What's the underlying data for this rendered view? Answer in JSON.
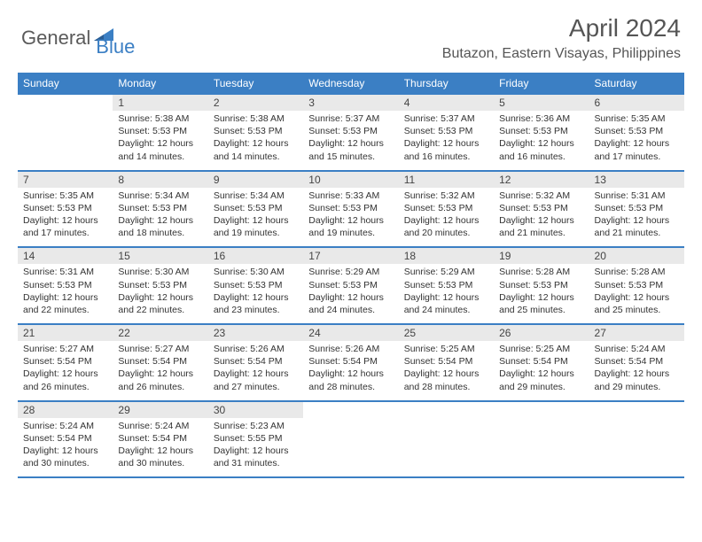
{
  "logo": {
    "text1": "General",
    "text2": "Blue"
  },
  "title": "April 2024",
  "location": "Butazon, Eastern Visayas, Philippines",
  "colors": {
    "accent": "#3b7fc4",
    "header_text": "#ffffff",
    "daynum_bg": "#e9e9e9",
    "body_text": "#333333",
    "title_text": "#555555",
    "background": "#ffffff"
  },
  "typography": {
    "month_title_fontsize": 28,
    "location_fontsize": 16,
    "weekday_fontsize": 12,
    "daynum_fontsize": 12,
    "body_fontsize": 10.5
  },
  "weekdays": [
    "Sunday",
    "Monday",
    "Tuesday",
    "Wednesday",
    "Thursday",
    "Friday",
    "Saturday"
  ],
  "first_weekday_index": 1,
  "days_in_month": 30,
  "days": [
    {
      "n": 1,
      "sunrise": "5:38 AM",
      "sunset": "5:53 PM",
      "dl_h": 12,
      "dl_m": 14
    },
    {
      "n": 2,
      "sunrise": "5:38 AM",
      "sunset": "5:53 PM",
      "dl_h": 12,
      "dl_m": 14
    },
    {
      "n": 3,
      "sunrise": "5:37 AM",
      "sunset": "5:53 PM",
      "dl_h": 12,
      "dl_m": 15
    },
    {
      "n": 4,
      "sunrise": "5:37 AM",
      "sunset": "5:53 PM",
      "dl_h": 12,
      "dl_m": 16
    },
    {
      "n": 5,
      "sunrise": "5:36 AM",
      "sunset": "5:53 PM",
      "dl_h": 12,
      "dl_m": 16
    },
    {
      "n": 6,
      "sunrise": "5:35 AM",
      "sunset": "5:53 PM",
      "dl_h": 12,
      "dl_m": 17
    },
    {
      "n": 7,
      "sunrise": "5:35 AM",
      "sunset": "5:53 PM",
      "dl_h": 12,
      "dl_m": 17
    },
    {
      "n": 8,
      "sunrise": "5:34 AM",
      "sunset": "5:53 PM",
      "dl_h": 12,
      "dl_m": 18
    },
    {
      "n": 9,
      "sunrise": "5:34 AM",
      "sunset": "5:53 PM",
      "dl_h": 12,
      "dl_m": 19
    },
    {
      "n": 10,
      "sunrise": "5:33 AM",
      "sunset": "5:53 PM",
      "dl_h": 12,
      "dl_m": 19
    },
    {
      "n": 11,
      "sunrise": "5:32 AM",
      "sunset": "5:53 PM",
      "dl_h": 12,
      "dl_m": 20
    },
    {
      "n": 12,
      "sunrise": "5:32 AM",
      "sunset": "5:53 PM",
      "dl_h": 12,
      "dl_m": 21
    },
    {
      "n": 13,
      "sunrise": "5:31 AM",
      "sunset": "5:53 PM",
      "dl_h": 12,
      "dl_m": 21
    },
    {
      "n": 14,
      "sunrise": "5:31 AM",
      "sunset": "5:53 PM",
      "dl_h": 12,
      "dl_m": 22
    },
    {
      "n": 15,
      "sunrise": "5:30 AM",
      "sunset": "5:53 PM",
      "dl_h": 12,
      "dl_m": 22
    },
    {
      "n": 16,
      "sunrise": "5:30 AM",
      "sunset": "5:53 PM",
      "dl_h": 12,
      "dl_m": 23
    },
    {
      "n": 17,
      "sunrise": "5:29 AM",
      "sunset": "5:53 PM",
      "dl_h": 12,
      "dl_m": 24
    },
    {
      "n": 18,
      "sunrise": "5:29 AM",
      "sunset": "5:53 PM",
      "dl_h": 12,
      "dl_m": 24
    },
    {
      "n": 19,
      "sunrise": "5:28 AM",
      "sunset": "5:53 PM",
      "dl_h": 12,
      "dl_m": 25
    },
    {
      "n": 20,
      "sunrise": "5:28 AM",
      "sunset": "5:53 PM",
      "dl_h": 12,
      "dl_m": 25
    },
    {
      "n": 21,
      "sunrise": "5:27 AM",
      "sunset": "5:54 PM",
      "dl_h": 12,
      "dl_m": 26
    },
    {
      "n": 22,
      "sunrise": "5:27 AM",
      "sunset": "5:54 PM",
      "dl_h": 12,
      "dl_m": 26
    },
    {
      "n": 23,
      "sunrise": "5:26 AM",
      "sunset": "5:54 PM",
      "dl_h": 12,
      "dl_m": 27
    },
    {
      "n": 24,
      "sunrise": "5:26 AM",
      "sunset": "5:54 PM",
      "dl_h": 12,
      "dl_m": 28
    },
    {
      "n": 25,
      "sunrise": "5:25 AM",
      "sunset": "5:54 PM",
      "dl_h": 12,
      "dl_m": 28
    },
    {
      "n": 26,
      "sunrise": "5:25 AM",
      "sunset": "5:54 PM",
      "dl_h": 12,
      "dl_m": 29
    },
    {
      "n": 27,
      "sunrise": "5:24 AM",
      "sunset": "5:54 PM",
      "dl_h": 12,
      "dl_m": 29
    },
    {
      "n": 28,
      "sunrise": "5:24 AM",
      "sunset": "5:54 PM",
      "dl_h": 12,
      "dl_m": 30
    },
    {
      "n": 29,
      "sunrise": "5:24 AM",
      "sunset": "5:54 PM",
      "dl_h": 12,
      "dl_m": 30
    },
    {
      "n": 30,
      "sunrise": "5:23 AM",
      "sunset": "5:55 PM",
      "dl_h": 12,
      "dl_m": 31
    }
  ],
  "labels": {
    "sunrise": "Sunrise:",
    "sunset": "Sunset:",
    "daylight": "Daylight:",
    "hours": "hours",
    "and": "and",
    "minutes": "minutes."
  }
}
